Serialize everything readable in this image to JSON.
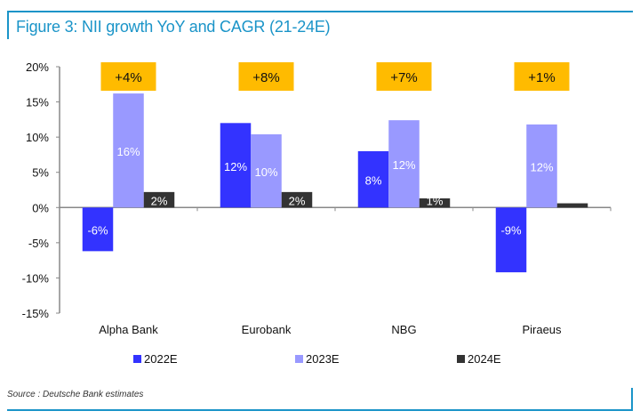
{
  "title": "Figure 3: NII growth YoY and CAGR (21-24E)",
  "source": "Source : Deutsche Bank estimates",
  "chart_data": {
    "type": "bar",
    "title": "Figure 3: NII growth YoY and CAGR (21-24E)",
    "xlabel": "",
    "ylabel": "",
    "categories": [
      "Alpha Bank",
      "Eurobank",
      "NBG",
      "Piraeus"
    ],
    "ylim": [
      -15,
      20
    ],
    "yticks": [
      -15,
      -10,
      -5,
      0,
      5,
      10,
      15,
      20
    ],
    "ytick_labels": [
      "-15%",
      "-10%",
      "-5%",
      "0%",
      "5%",
      "10%",
      "15%",
      "20%"
    ],
    "grid": false,
    "legend_position": "bottom",
    "series": [
      {
        "name": "2022E",
        "color": "#3333ff",
        "label_color": "#ffffff",
        "values": [
          -6.2,
          12.0,
          8.0,
          -9.2
        ],
        "labels": [
          "-6%",
          "12%",
          "8%",
          "-9%"
        ]
      },
      {
        "name": "2023E",
        "color": "#9999ff",
        "label_color": "#ffffff",
        "values": [
          16.2,
          10.4,
          12.4,
          11.8
        ],
        "labels": [
          "16%",
          "10%",
          "12%",
          "12%"
        ]
      },
      {
        "name": "2024E",
        "color": "#333333",
        "label_color": "#ffffff",
        "values": [
          2.2,
          2.2,
          1.3,
          0.6
        ],
        "labels": [
          "2%",
          "2%",
          "1%",
          ""
        ]
      }
    ],
    "annotations": {
      "color": "#ffbb00",
      "labels": [
        "+4%",
        "+8%",
        "+7%",
        "+1%"
      ],
      "meaning": "CAGR 21-24E"
    }
  }
}
